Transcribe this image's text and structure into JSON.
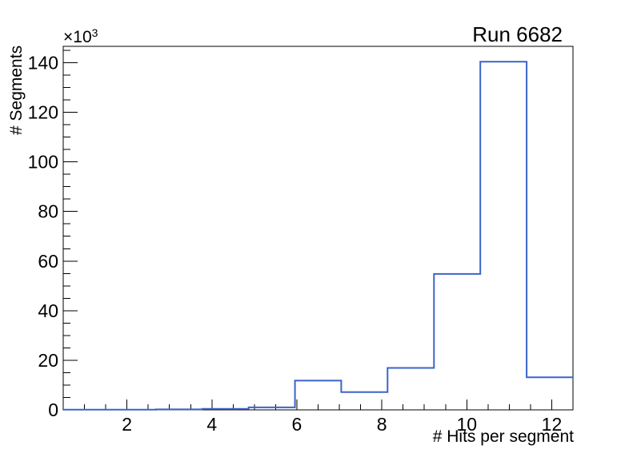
{
  "chart_data": {
    "type": "histogram",
    "title": "Run 6682",
    "xlabel": "# Hits per segment",
    "ylabel": "# Segments",
    "y_axis_multiplier": {
      "base": "×10",
      "exponent": "3"
    },
    "xlim": [
      0.5,
      12.5
    ],
    "ylim": [
      0,
      146.6
    ],
    "bin_edges": [
      0.5,
      1.591,
      2.682,
      3.773,
      4.864,
      5.955,
      7.045,
      8.136,
      9.227,
      10.318,
      11.409,
      12.5
    ],
    "counts_in_thousands": [
      0.1,
      0.1,
      0.2,
      0.4,
      1.0,
      11.8,
      7.2,
      16.9,
      54.8,
      140.4,
      13.1
    ],
    "x_major_ticks": [
      2,
      4,
      6,
      8,
      10,
      12
    ],
    "x_minor_tick_step": 0.5,
    "x_minor_tick_range": [
      1.0,
      12.0
    ],
    "y_major_ticks": [
      0,
      20,
      40,
      60,
      80,
      100,
      120,
      140
    ],
    "y_minor_tick_step": 5,
    "y_minor_tick_range": [
      5,
      145
    ],
    "grid": false,
    "legend_position": "none",
    "line_color": "#3a64c8",
    "axis_color": "#000000",
    "background_color": "#ffffff"
  }
}
